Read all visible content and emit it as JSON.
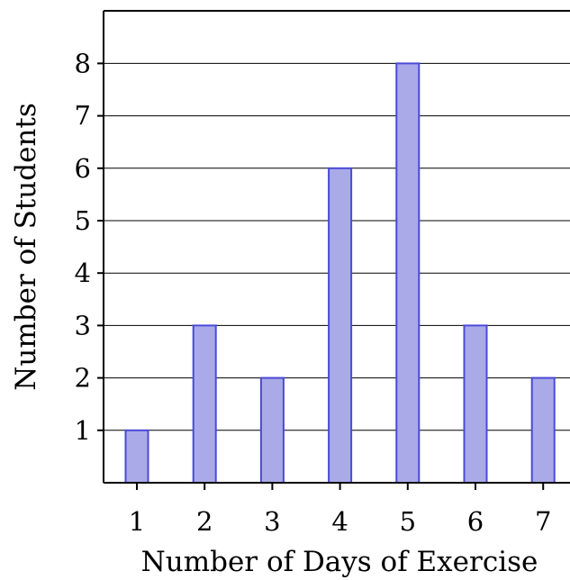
{
  "chart_data": {
    "type": "bar",
    "title": "",
    "xlabel": "Number of Days of Exercise",
    "ylabel": "Number of Students",
    "categories": [
      "1",
      "2",
      "3",
      "4",
      "5",
      "6",
      "7"
    ],
    "values": [
      1,
      3,
      2,
      6,
      8,
      3,
      2
    ],
    "ylim": [
      0,
      8
    ],
    "yticks": [
      "1",
      "2",
      "3",
      "4",
      "5",
      "6",
      "7",
      "8"
    ],
    "grid": "horizontal",
    "colors": {
      "bar_fill": "#aaaae8",
      "bar_stroke": "#4a4ad8",
      "grid": "#000000",
      "axis": "#000000"
    }
  }
}
